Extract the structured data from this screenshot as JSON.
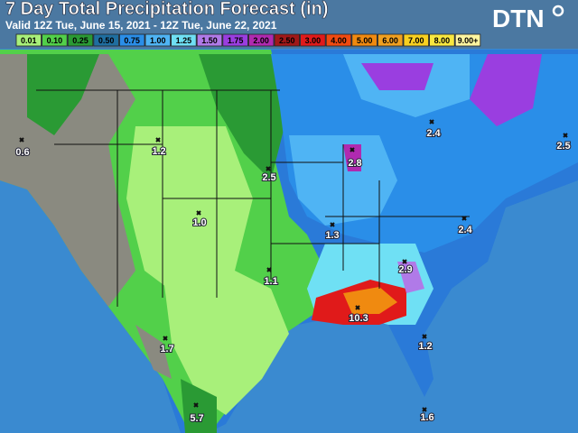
{
  "header": {
    "title": "7 Day Total Precipitation Forecast (in)",
    "subtitle": "Valid 12Z Tue, June 15, 2021 - 12Z Tue, June 22, 2021",
    "logo": "DTN"
  },
  "legend": [
    {
      "label": "0.01",
      "color": "#a8f07a"
    },
    {
      "label": "0.10",
      "color": "#52d04a"
    },
    {
      "label": "0.25",
      "color": "#2a9a34"
    },
    {
      "label": "0.50",
      "color": "#1f6ea0"
    },
    {
      "label": "0.75",
      "color": "#2a8ee8"
    },
    {
      "label": "1.00",
      "color": "#4fb4f4"
    },
    {
      "label": "1.25",
      "color": "#6fe0f4"
    },
    {
      "label": "1.50",
      "color": "#b07ae8"
    },
    {
      "label": "1.75",
      "color": "#9a3ee0"
    },
    {
      "label": "2.00",
      "color": "#b02ab0"
    },
    {
      "label": "2.50",
      "color": "#a01818"
    },
    {
      "label": "3.00",
      "color": "#e01a1a"
    },
    {
      "label": "4.00",
      "color": "#f04a10"
    },
    {
      "label": "5.00",
      "color": "#f08a10"
    },
    {
      "label": "6.00",
      "color": "#f0a020"
    },
    {
      "label": "7.00",
      "color": "#f8d020"
    },
    {
      "label": "8.00",
      "color": "#f8e840"
    },
    {
      "label": "9.00+",
      "color": "#fff6a0"
    }
  ],
  "points": [
    {
      "label": "0.6"
    },
    {
      "label": "1.2"
    },
    {
      "label": "2.5"
    },
    {
      "label": "2.8"
    },
    {
      "label": "2.4"
    },
    {
      "label": "2.5"
    },
    {
      "label": "1.0"
    },
    {
      "label": "1.3"
    },
    {
      "label": "2.4"
    },
    {
      "label": "1.1"
    },
    {
      "label": "2.9"
    },
    {
      "label": "10.3"
    },
    {
      "label": "1.7"
    },
    {
      "label": "1.2"
    },
    {
      "label": "5.7"
    },
    {
      "label": "1.6"
    }
  ]
}
